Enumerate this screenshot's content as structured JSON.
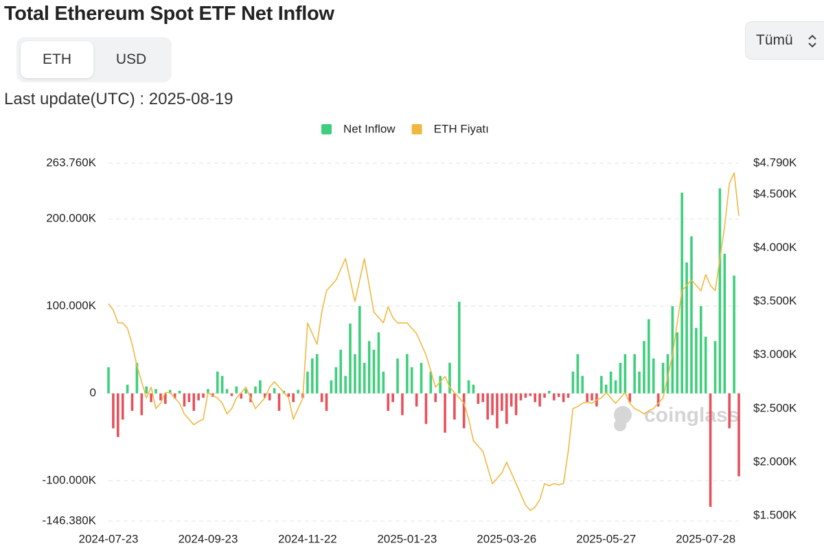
{
  "ui": {
    "tabs": [
      "ETH",
      "USD"
    ],
    "range_select": "Tümü",
    "last_update": "Last update(UTC) : 2025-08-19",
    "watermark": "coinglass"
  },
  "chart_data": {
    "type": "bar-line",
    "title": "Total Ethereum Spot ETF Net Inflow",
    "categories": [
      "2024-07-23",
      null,
      null,
      null,
      null,
      null,
      null,
      null,
      null,
      null,
      null,
      null,
      null,
      null,
      null,
      null,
      null,
      null,
      null,
      null,
      null,
      "2024-09-23",
      null,
      null,
      null,
      null,
      null,
      null,
      null,
      null,
      null,
      null,
      null,
      null,
      null,
      null,
      null,
      null,
      null,
      null,
      null,
      null,
      "2024-11-22",
      null,
      null,
      null,
      null,
      null,
      null,
      null,
      null,
      null,
      null,
      null,
      null,
      null,
      null,
      null,
      null,
      null,
      null,
      null,
      null,
      "2025-01-23",
      null,
      null,
      null,
      null,
      null,
      null,
      null,
      null,
      null,
      null,
      null,
      null,
      null,
      null,
      null,
      null,
      null,
      null,
      null,
      null,
      "2025-03-26",
      null,
      null,
      null,
      null,
      null,
      null,
      null,
      null,
      null,
      null,
      null,
      null,
      null,
      null,
      null,
      null,
      null,
      null,
      null,
      null,
      "2025-05-27",
      null,
      null,
      null,
      null,
      null,
      null,
      null,
      null,
      null,
      null,
      null,
      null,
      null,
      null,
      null,
      null,
      null,
      null,
      null,
      null,
      "2025-07-28",
      null,
      null,
      null,
      null,
      null,
      null,
      null
    ],
    "series": [
      {
        "name": "Net Inflow",
        "color": "#3ecf7c",
        "negative_color": "#e8505b",
        "axis": "y",
        "values": [
          30000,
          -40000,
          -50000,
          -30000,
          10000,
          -20000,
          35000,
          -25000,
          8000,
          -10000,
          5000,
          -8000,
          -12000,
          4000,
          -6000,
          3000,
          -15000,
          -10000,
          -20000,
          -8000,
          -5000,
          5000,
          -4000,
          25000,
          20000,
          5000,
          -3000,
          8000,
          -6000,
          5000,
          -10000,
          8000,
          15000,
          -5000,
          -8000,
          6000,
          -20000,
          3000,
          -4000,
          -10000,
          4000,
          -5000,
          25000,
          40000,
          45000,
          -10000,
          -20000,
          15000,
          30000,
          50000,
          20000,
          80000,
          45000,
          100000,
          35000,
          60000,
          50000,
          70000,
          25000,
          -20000,
          -10000,
          40000,
          -25000,
          45000,
          30000,
          -15000,
          35000,
          -35000,
          25000,
          -10000,
          20000,
          -45000,
          35000,
          -30000,
          105000,
          -40000,
          15000,
          10000,
          -12000,
          -10000,
          -30000,
          -25000,
          -40000,
          -20000,
          -35000,
          -15000,
          -25000,
          -8000,
          -5000,
          -3000,
          -10000,
          -15000,
          -5000,
          3000,
          -8000,
          -4000,
          -10000,
          -5000,
          25000,
          45000,
          20000,
          -10000,
          -8000,
          -15000,
          20000,
          10000,
          25000,
          15000,
          35000,
          45000,
          -10000,
          45000,
          25000,
          60000,
          85000,
          40000,
          -15000,
          35000,
          45000,
          100000,
          70000,
          230000,
          150000,
          180000,
          75000,
          100000,
          65000,
          -130000,
          60000,
          235000,
          160000,
          -40000,
          135000,
          -95000
        ]
      },
      {
        "name": "ETH Fiyatı",
        "color": "#f0b840",
        "axis": "y2",
        "values": [
          3480,
          3420,
          3300,
          3300,
          3250,
          3100,
          2900,
          2750,
          2600,
          2700,
          2500,
          2550,
          2650,
          2650,
          2600,
          2550,
          2450,
          2400,
          2350,
          2380,
          2400,
          2650,
          2620,
          2600,
          2550,
          2450,
          2500,
          2600,
          2650,
          2700,
          2600,
          2500,
          2550,
          2600,
          2700,
          2750,
          2700,
          2650,
          2600,
          2400,
          2500,
          2600,
          3300,
          3200,
          3100,
          3400,
          3600,
          3650,
          3700,
          3800,
          3900,
          3700,
          3500,
          3700,
          3900,
          3650,
          3400,
          3350,
          3300,
          3450,
          3350,
          3300,
          3300,
          3300,
          3250,
          3200,
          3100,
          3000,
          2850,
          2700,
          2750,
          2800,
          2700,
          2650,
          2600,
          2550,
          2400,
          2200,
          2150,
          2100,
          1950,
          1800,
          1850,
          1900,
          2000,
          1900,
          1800,
          1700,
          1600,
          1550,
          1580,
          1650,
          1800,
          1780,
          1800,
          1790,
          1800,
          2100,
          2500,
          2520,
          2550,
          2560,
          2550,
          2580,
          2600,
          2650,
          2600,
          2550,
          2600,
          2650,
          2550,
          2500,
          2480,
          2450,
          2480,
          2500,
          2550,
          2600,
          2800,
          3000,
          3300,
          3600,
          3650,
          3700,
          3650,
          3600,
          3750,
          3650,
          3600,
          3900,
          4200,
          4600,
          4700,
          4300
        ]
      }
    ],
    "ylim": [
      -146380,
      263760
    ],
    "yticks": [
      {
        "value": 263760,
        "label": "263.760K"
      },
      {
        "value": 200000,
        "label": "200.000K"
      },
      {
        "value": 100000,
        "label": "100.000K"
      },
      0,
      {
        "value": -100000,
        "label": "-100.000K"
      },
      {
        "value": -146380,
        "label": "-146.380K"
      }
    ],
    "y2lim": [
      1450,
      4790
    ],
    "y2ticks": [
      {
        "value": 4790,
        "label": "$4.790K"
      },
      {
        "value": 4500,
        "label": "$4.500K"
      },
      {
        "value": 4000,
        "label": "$4.000K"
      },
      {
        "value": 3500,
        "label": "$3.500K"
      },
      {
        "value": 3000,
        "label": "$3.000K"
      },
      {
        "value": 2500,
        "label": "$2.500K"
      },
      {
        "value": 2000,
        "label": "$2.000K"
      },
      {
        "value": 1500,
        "label": "$1.500K"
      }
    ],
    "grid": true,
    "legend": "top"
  }
}
